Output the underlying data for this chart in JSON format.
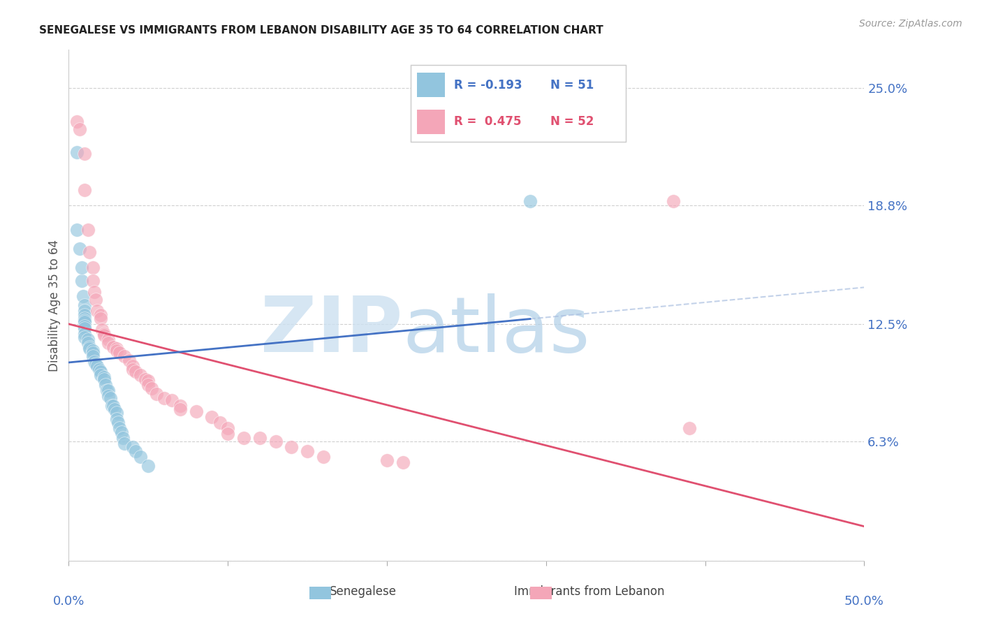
{
  "title": "SENEGALESE VS IMMIGRANTS FROM LEBANON DISABILITY AGE 35 TO 64 CORRELATION CHART",
  "source": "Source: ZipAtlas.com",
  "ylabel": "Disability Age 35 to 64",
  "yticks": [
    0.0,
    0.063,
    0.125,
    0.188,
    0.25
  ],
  "ytick_labels": [
    "",
    "6.3%",
    "12.5%",
    "18.8%",
    "25.0%"
  ],
  "xlim": [
    0.0,
    0.5
  ],
  "ylim": [
    0.0,
    0.27
  ],
  "legend_blue_r": "R = -0.193",
  "legend_blue_n": "N = 51",
  "legend_pink_r": "R =  0.475",
  "legend_pink_n": "N = 52",
  "blue_color": "#92c5de",
  "pink_color": "#f4a6b8",
  "blue_line_color": "#4472c4",
  "pink_line_color": "#e05070",
  "blue_line_dash_color": "#aabfe0",
  "watermark_zip_color": "#cce0f0",
  "watermark_atlas_color": "#b0cfe8",
  "background_color": "#ffffff",
  "grid_color": "#d0d0d0",
  "blue_x": [
    0.005,
    0.005,
    0.007,
    0.008,
    0.008,
    0.009,
    0.01,
    0.01,
    0.01,
    0.01,
    0.01,
    0.01,
    0.01,
    0.01,
    0.01,
    0.01,
    0.012,
    0.012,
    0.013,
    0.013,
    0.015,
    0.015,
    0.015,
    0.016,
    0.017,
    0.018,
    0.019,
    0.02,
    0.02,
    0.022,
    0.022,
    0.023,
    0.024,
    0.025,
    0.025,
    0.026,
    0.027,
    0.028,
    0.029,
    0.03,
    0.03,
    0.031,
    0.032,
    0.033,
    0.034,
    0.035,
    0.04,
    0.042,
    0.045,
    0.05,
    0.29
  ],
  "blue_y": [
    0.216,
    0.175,
    0.165,
    0.148,
    0.155,
    0.14,
    0.135,
    0.132,
    0.13,
    0.128,
    0.127,
    0.126,
    0.124,
    0.123,
    0.12,
    0.118,
    0.117,
    0.115,
    0.113,
    0.112,
    0.111,
    0.11,
    0.108,
    0.105,
    0.104,
    0.103,
    0.101,
    0.1,
    0.098,
    0.097,
    0.096,
    0.093,
    0.09,
    0.09,
    0.087,
    0.086,
    0.082,
    0.082,
    0.08,
    0.078,
    0.075,
    0.073,
    0.07,
    0.068,
    0.065,
    0.062,
    0.06,
    0.058,
    0.055,
    0.05,
    0.19
  ],
  "pink_x": [
    0.005,
    0.007,
    0.01,
    0.01,
    0.012,
    0.013,
    0.015,
    0.015,
    0.016,
    0.017,
    0.018,
    0.02,
    0.02,
    0.021,
    0.022,
    0.022,
    0.025,
    0.025,
    0.028,
    0.03,
    0.03,
    0.032,
    0.035,
    0.038,
    0.04,
    0.04,
    0.042,
    0.045,
    0.048,
    0.05,
    0.05,
    0.052,
    0.055,
    0.06,
    0.065,
    0.07,
    0.07,
    0.08,
    0.09,
    0.095,
    0.1,
    0.1,
    0.11,
    0.12,
    0.13,
    0.14,
    0.15,
    0.16,
    0.2,
    0.21,
    0.38,
    0.39
  ],
  "pink_y": [
    0.232,
    0.228,
    0.215,
    0.196,
    0.175,
    0.163,
    0.155,
    0.148,
    0.142,
    0.138,
    0.132,
    0.13,
    0.128,
    0.122,
    0.12,
    0.119,
    0.117,
    0.115,
    0.113,
    0.112,
    0.111,
    0.11,
    0.108,
    0.106,
    0.103,
    0.101,
    0.1,
    0.098,
    0.096,
    0.095,
    0.093,
    0.091,
    0.088,
    0.086,
    0.085,
    0.082,
    0.08,
    0.079,
    0.076,
    0.073,
    0.07,
    0.067,
    0.065,
    0.065,
    0.063,
    0.06,
    0.058,
    0.055,
    0.053,
    0.052,
    0.19,
    0.07
  ]
}
